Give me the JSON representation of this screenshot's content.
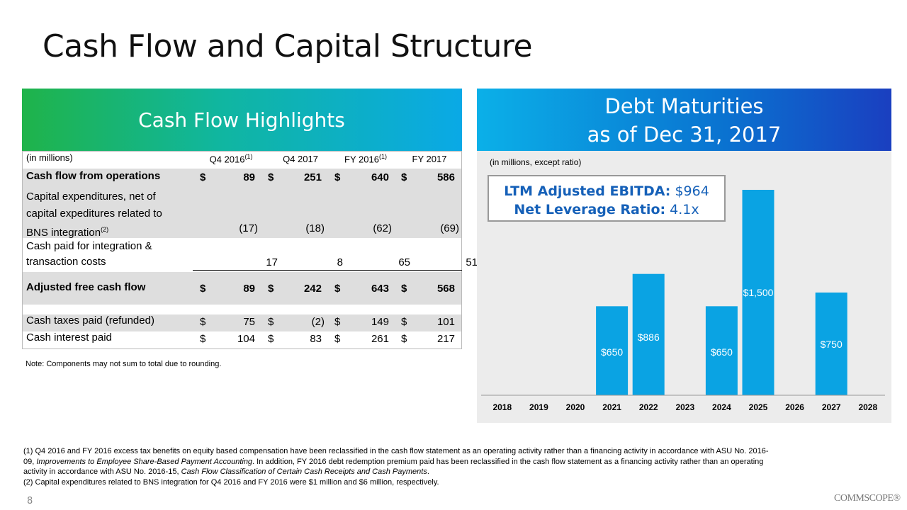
{
  "title": "Cash Flow and Capital Structure",
  "cash_flow": {
    "header": "Cash Flow Highlights",
    "columns": [
      "Q4 2016",
      "Q4 2017",
      "FY 2016",
      "FY 2017"
    ],
    "col_sups": [
      "(1)",
      "",
      "(1)",
      ""
    ],
    "units": "(in millions)",
    "rows": {
      "cfo": {
        "label": "Cash flow from operations",
        "values": [
          "89",
          "251",
          "640",
          "586"
        ]
      },
      "capex": {
        "label1": "Capital expenditures, net of",
        "label2": "capital expeditures related to",
        "label3": "BNS integration",
        "sup": "(2)",
        "values": [
          "(17)",
          "(18)",
          "(62)",
          "(69)"
        ]
      },
      "integration": {
        "label1": "Cash paid for integration &",
        "label2": "transaction costs",
        "values": [
          "17",
          "8",
          "65",
          "51"
        ]
      },
      "afcf": {
        "label": "Adjusted free cash flow",
        "values": [
          "89",
          "242",
          "643",
          "568"
        ]
      },
      "taxes": {
        "label": "Cash taxes paid (refunded)",
        "values": [
          "75",
          "(2)",
          "149",
          "101"
        ]
      },
      "interest": {
        "label": "Cash interest paid",
        "values": [
          "104",
          "83",
          "261",
          "217"
        ]
      }
    },
    "dollar": "$",
    "note": "Note: Components may not sum to total due to rounding."
  },
  "debt": {
    "header_line1": "Debt Maturities",
    "header_line2": "as of Dec 31, 2017",
    "units": "(in millions, except ratio)",
    "ebitda_label": "LTM Adjusted EBITDA:",
    "ebitda_value": "$964",
    "leverage_label": "Net Leverage Ratio:",
    "leverage_value": "4.1x"
  },
  "chart_data": {
    "type": "bar",
    "categories": [
      "2018",
      "2019",
      "2020",
      "2021",
      "2022",
      "2023",
      "2024",
      "2025",
      "2026",
      "2027",
      "2028"
    ],
    "values": [
      0,
      0,
      0,
      650,
      886,
      0,
      650,
      1500,
      0,
      750,
      0
    ],
    "labels": [
      "",
      "",
      "",
      "$650",
      "$886",
      "",
      "$650",
      "$1,500",
      "",
      "$750",
      ""
    ],
    "color": "#0aa3e3"
  },
  "footnotes": {
    "f1a": "(1) Q4 2016 and FY 2016 excess tax benefits on equity based compensation have been reclassified in the cash flow statement as an operating activity rather than a financing activity in accordance with ASU No. 2016-",
    "f1b_pre": "09, ",
    "f1b_italic": "Improvements to Employee Share-Based Payment Accounting",
    "f1b_post": ". In addition, FY 2016 debt redemption premium paid has been reclassified in the cash flow statement as a financing activity rather than an operating",
    "f1c_pre": "activity in accordance with ASU No. 2016-15, ",
    "f1c_italic": "Cash Flow Classification of Certain Cash Receipts and Cash Payments",
    "f1c_post": ".",
    "f2": "(2) Capital expenditures related to BNS integration for Q4 2016 and FY 2016 were $1 million and $6 million, respectively."
  },
  "page_number": "8",
  "logo_text": "COMMSCOPE®"
}
